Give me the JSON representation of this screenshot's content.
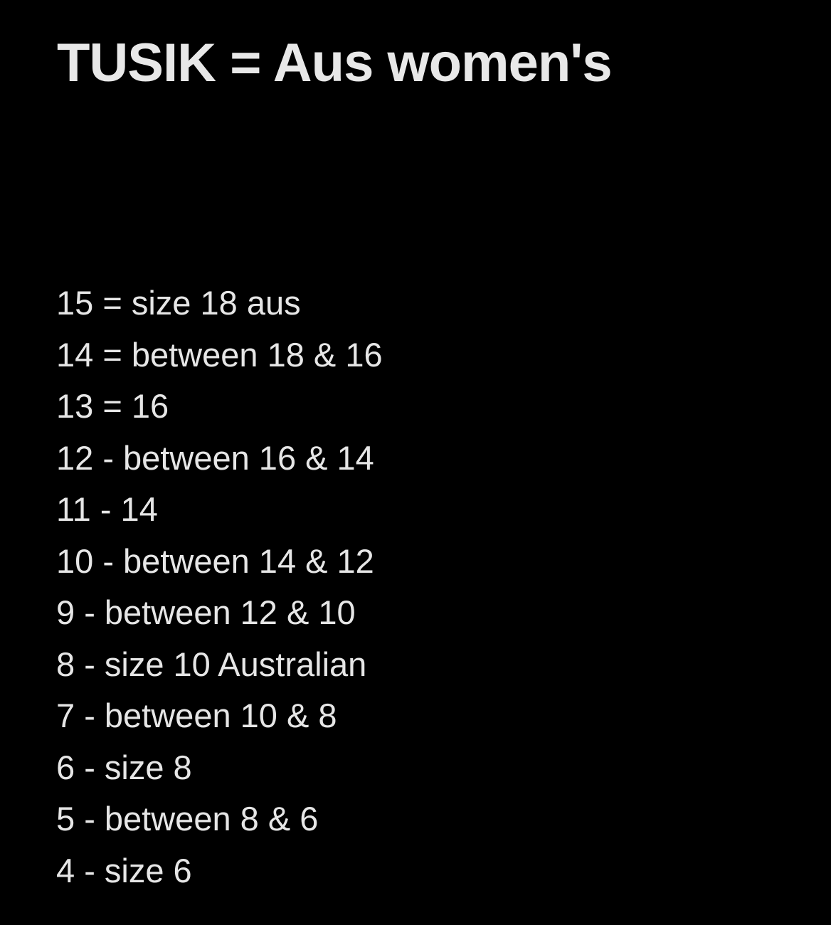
{
  "title": "TUSIK = Aus women's",
  "sizes": [
    "15 = size 18 aus",
    "14 = between 18 & 16",
    "13 = 16",
    "12 - between 16 & 14",
    "11 - 14",
    "10 - between 14 & 12",
    "9 - between 12 & 10",
    "8 - size 10 Australian",
    "7 - between 10 & 8",
    "6 - size 8",
    "5 - between 8 & 6",
    "4 - size 6"
  ]
}
